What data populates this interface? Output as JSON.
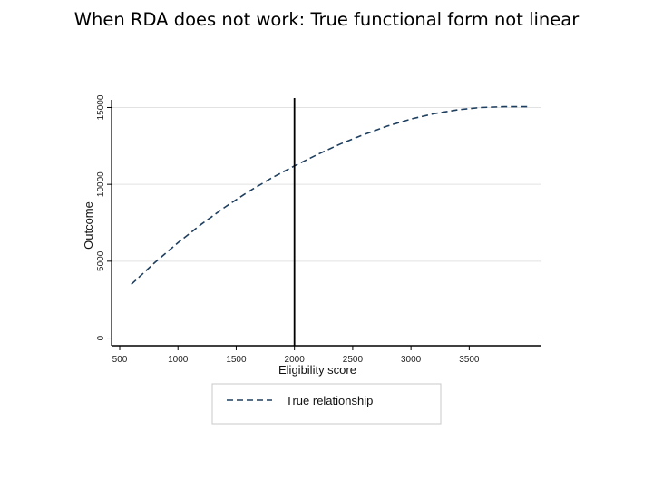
{
  "slide": {
    "title": "When RDA does not work: True functional form not linear"
  },
  "chart_data": {
    "type": "line",
    "xlabel": "Eligibility score",
    "ylabel": "Outcome",
    "xlim": [
      430,
      4120
    ],
    "ylim": [
      -500,
      15500
    ],
    "x_ticks": [
      500,
      1000,
      1500,
      2000,
      2500,
      3000,
      3500
    ],
    "y_ticks": [
      0,
      5000,
      10000,
      15000
    ],
    "cutoff_x": 2000,
    "grid": "horizontal",
    "legend_position": "bottom",
    "series": [
      {
        "name": "True relationship",
        "color": "#1f3f5f",
        "style": "dashed",
        "x": [
          600,
          800,
          1000,
          1200,
          1400,
          1600,
          1800,
          2000,
          2200,
          2400,
          2600,
          2800,
          3000,
          3200,
          3400,
          3600,
          3800,
          4000
        ],
        "y": [
          3500,
          4900,
          6200,
          7400,
          8500,
          9500,
          10400,
          11200,
          11950,
          12650,
          13250,
          13800,
          14250,
          14600,
          14850,
          15000,
          15050,
          15050
        ]
      }
    ]
  }
}
